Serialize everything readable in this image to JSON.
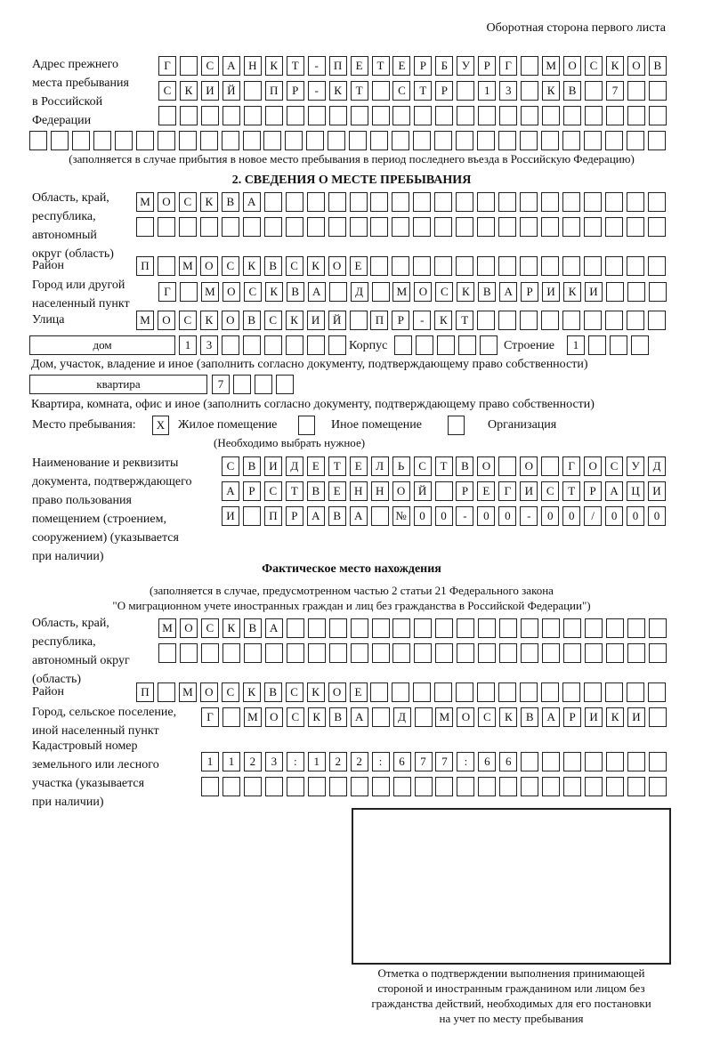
{
  "header": "Оборотная сторона первого листа",
  "prev_address": {
    "label": [
      "Адрес прежнего",
      "места пребывания",
      "в Российской",
      "Федерации"
    ],
    "rows": [
      [
        "Г",
        "",
        "С",
        "А",
        "Н",
        "К",
        "Т",
        "-",
        "П",
        "Е",
        "Т",
        "Е",
        "Р",
        "Б",
        "У",
        "Р",
        "Г",
        "",
        "М",
        "О",
        "С",
        "К",
        "О",
        "В"
      ],
      [
        "С",
        "К",
        "И",
        "Й",
        "",
        "П",
        "Р",
        "-",
        "К",
        "Т",
        "",
        "С",
        "Т",
        "Р",
        "",
        "1",
        "3",
        "",
        "К",
        "В",
        "",
        "7",
        "",
        ""
      ],
      [
        "",
        "",
        "",
        "",
        "",
        "",
        "",
        "",
        "",
        "",
        "",
        "",
        "",
        "",
        "",
        "",
        "",
        "",
        "",
        "",
        "",
        "",
        "",
        ""
      ],
      [
        "",
        "",
        "",
        "",
        "",
        "",
        "",
        "",
        "",
        "",
        "",
        "",
        "",
        "",
        "",
        "",
        "",
        "",
        "",
        "",
        "",
        "",
        "",
        "",
        "",
        "",
        "",
        "",
        "",
        ""
      ]
    ],
    "note": "(заполняется в случае прибытия в новое место пребывания в период последнего въезда в Российскую Федерацию)"
  },
  "section2": {
    "title": "2. СВЕДЕНИЯ О МЕСТЕ ПРЕБЫВАНИЯ",
    "region_label": [
      "Область, край,",
      "республика,",
      "автономный",
      "округ (область)"
    ],
    "region_rows": [
      [
        "М",
        "О",
        "С",
        "К",
        "В",
        "А",
        "",
        "",
        "",
        "",
        "",
        "",
        "",
        "",
        "",
        "",
        "",
        "",
        "",
        "",
        "",
        "",
        "",
        "",
        ""
      ],
      [
        "",
        "",
        "",
        "",
        "",
        "",
        "",
        "",
        "",
        "",
        "",
        "",
        "",
        "",
        "",
        "",
        "",
        "",
        "",
        "",
        "",
        "",
        "",
        "",
        ""
      ]
    ],
    "district_label": "Район",
    "district": [
      "П",
      "",
      "М",
      "О",
      "С",
      "К",
      "В",
      "С",
      "К",
      "О",
      "Е",
      "",
      "",
      "",
      "",
      "",
      "",
      "",
      "",
      "",
      "",
      "",
      "",
      "",
      ""
    ],
    "city_label": [
      "Город или другой",
      "населенный пункт"
    ],
    "city": [
      "Г",
      "",
      "М",
      "О",
      "С",
      "К",
      "В",
      "А",
      "",
      "Д",
      "",
      "М",
      "О",
      "С",
      "К",
      "В",
      "А",
      "Р",
      "И",
      "К",
      "И",
      "",
      "",
      ""
    ],
    "street_label": "Улица",
    "street": [
      "М",
      "О",
      "С",
      "К",
      "О",
      "В",
      "С",
      "К",
      "И",
      "Й",
      "",
      "П",
      "Р",
      "-",
      "К",
      "Т",
      "",
      "",
      "",
      "",
      "",
      "",
      "",
      "",
      ""
    ],
    "house_type": "дом",
    "house": [
      "1",
      "3",
      "",
      "",
      "",
      "",
      "",
      ""
    ],
    "korpus_label": "Корпус",
    "korpus": [
      "",
      "",
      "",
      "",
      ""
    ],
    "building_label": "Строение",
    "building": [
      "1",
      "",
      "",
      ""
    ],
    "house_note": "Дом, участок, владение и иное (заполнить согласно документу, подтверждающему право собственности)",
    "flat_type": "квартира",
    "flat": [
      "7",
      "",
      "",
      ""
    ],
    "flat_note": "Квартира, комната, офис и иное (заполнить согласно документу, подтверждающему право собственности)",
    "stay_label": "Место пребывания:",
    "stay_options": [
      {
        "label": "Жилое помещение",
        "mark": "X"
      },
      {
        "label": "Иное помещение",
        "mark": ""
      },
      {
        "label": "Организация",
        "mark": ""
      }
    ],
    "stay_note": "(Необходимо выбрать нужное)",
    "doc_label": [
      "Наименование и реквизиты",
      "документа, подтверждающего",
      "право пользования",
      "помещением (строением,",
      "сооружением) (указывается",
      "при наличии)"
    ],
    "doc_rows": [
      [
        "С",
        "В",
        "И",
        "Д",
        "Е",
        "Т",
        "Е",
        "Л",
        "Ь",
        "С",
        "Т",
        "В",
        "О",
        "",
        "О",
        "",
        "Г",
        "О",
        "С",
        "У",
        "Д"
      ],
      [
        "А",
        "Р",
        "С",
        "Т",
        "В",
        "Е",
        "Н",
        "Н",
        "О",
        "Й",
        "",
        "Р",
        "Е",
        "Г",
        "И",
        "С",
        "Т",
        "Р",
        "А",
        "Ц",
        "И"
      ],
      [
        "И",
        "",
        "П",
        "Р",
        "А",
        "В",
        "А",
        "",
        "№",
        "0",
        "0",
        "-",
        "0",
        "0",
        "-",
        "0",
        "0",
        "/",
        "0",
        "0",
        "0"
      ]
    ]
  },
  "actual": {
    "title": "Фактическое место нахождения",
    "note1": "(заполняется в случае, предусмотренном частью 2 статьи 21 Федерального закона",
    "note2": "\"О миграционном учете иностранных граждан и лиц без гражданства в Российской Федерации\")",
    "region_label": [
      "Область, край,",
      "республика,",
      "автономный округ",
      "(область)"
    ],
    "region_rows": [
      [
        "М",
        "О",
        "С",
        "К",
        "В",
        "А",
        "",
        "",
        "",
        "",
        "",
        "",
        "",
        "",
        "",
        "",
        "",
        "",
        "",
        "",
        "",
        "",
        "",
        ""
      ],
      [
        "",
        "",
        "",
        "",
        "",
        "",
        "",
        "",
        "",
        "",
        "",
        "",
        "",
        "",
        "",
        "",
        "",
        "",
        "",
        "",
        "",
        "",
        "",
        ""
      ]
    ],
    "district_label": "Район",
    "district": [
      "П",
      "",
      "М",
      "О",
      "С",
      "К",
      "В",
      "С",
      "К",
      "О",
      "Е",
      "",
      "",
      "",
      "",
      "",
      "",
      "",
      "",
      "",
      "",
      "",
      "",
      "",
      ""
    ],
    "city_label": [
      "Город, сельское поселение,",
      "иной населенный пункт"
    ],
    "city": [
      "Г",
      "",
      "М",
      "О",
      "С",
      "К",
      "В",
      "А",
      "",
      "Д",
      "",
      "М",
      "О",
      "С",
      "К",
      "В",
      "А",
      "Р",
      "И",
      "К",
      "И",
      ""
    ],
    "cadastral_label": [
      "Кадастровый номер",
      "земельного или лесного",
      "участка (указывается",
      "при наличии)"
    ],
    "cadastral_rows": [
      [
        "1",
        "1",
        "2",
        "3",
        ":",
        "1",
        "2",
        "2",
        ":",
        "6",
        "7",
        "7",
        ":",
        "6",
        "6",
        "",
        "",
        "",
        "",
        "",
        "",
        ""
      ],
      [
        "",
        "",
        "",
        "",
        "",
        "",
        "",
        "",
        "",
        "",
        "",
        "",
        "",
        "",
        "",
        "",
        "",
        "",
        "",
        "",
        "",
        ""
      ]
    ]
  },
  "confirmation": {
    "caption": [
      "Отметка о подтверждении выполнения принимающей",
      "стороной и иностранным гражданином или лицом без",
      "гражданства действий, необходимых для его постановки",
      "на учет по месту пребывания"
    ]
  }
}
